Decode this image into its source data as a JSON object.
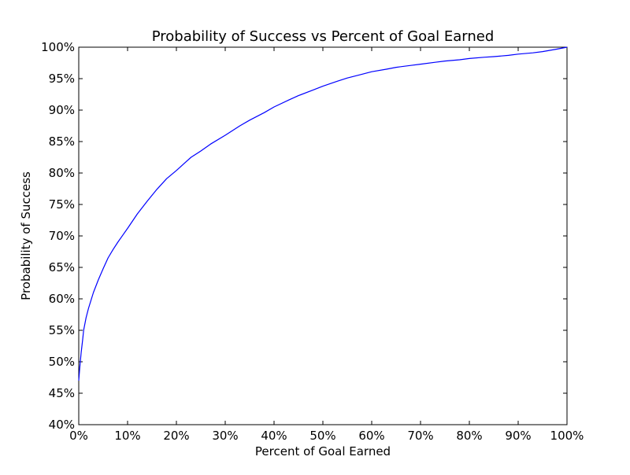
{
  "chart_data": {
    "type": "line",
    "title": "Probability of Success vs Percent of Goal Earned",
    "xlabel": "Percent of Goal Earned",
    "ylabel": "Probability of Success",
    "xlim": [
      0,
      100
    ],
    "ylim": [
      40,
      100
    ],
    "x_ticks": [
      0,
      10,
      20,
      30,
      40,
      50,
      60,
      70,
      80,
      90,
      100
    ],
    "y_ticks": [
      40,
      45,
      50,
      55,
      60,
      65,
      70,
      75,
      80,
      85,
      90,
      95,
      100
    ],
    "x_tick_labels": [
      "0%",
      "10%",
      "20%",
      "30%",
      "40%",
      "50%",
      "60%",
      "70%",
      "80%",
      "90%",
      "100%"
    ],
    "y_tick_labels": [
      "40%",
      "45%",
      "50%",
      "55%",
      "60%",
      "65%",
      "70%",
      "75%",
      "80%",
      "85%",
      "90%",
      "95%",
      "100%"
    ],
    "grid": false,
    "series": [
      {
        "color": "#0000ff",
        "x": [
          0,
          0.2,
          0.5,
          0.8,
          1,
          1.5,
          2,
          3,
          4,
          5,
          6,
          7,
          8,
          9,
          10,
          12,
          14,
          16,
          18,
          20,
          22,
          23,
          25,
          27,
          30,
          33,
          35,
          38,
          40,
          43,
          45,
          48,
          50,
          53,
          55,
          58,
          60,
          63,
          65,
          68,
          70,
          73,
          75,
          78,
          80,
          83,
          85,
          88,
          90,
          93,
          95,
          98,
          100
        ],
        "y": [
          47,
          49,
          51.5,
          53.5,
          55,
          57,
          58.5,
          61,
          63,
          64.8,
          66.5,
          67.8,
          69,
          70.1,
          71.2,
          73.5,
          75.5,
          77.4,
          79.1,
          80.4,
          81.8,
          82.5,
          83.5,
          84.6,
          86,
          87.5,
          88.4,
          89.6,
          90.5,
          91.6,
          92.3,
          93.2,
          93.8,
          94.6,
          95.1,
          95.7,
          96.1,
          96.5,
          96.8,
          97.1,
          97.3,
          97.6,
          97.8,
          98,
          98.2,
          98.4,
          98.5,
          98.7,
          98.9,
          99.1,
          99.3,
          99.7,
          100
        ]
      }
    ]
  }
}
